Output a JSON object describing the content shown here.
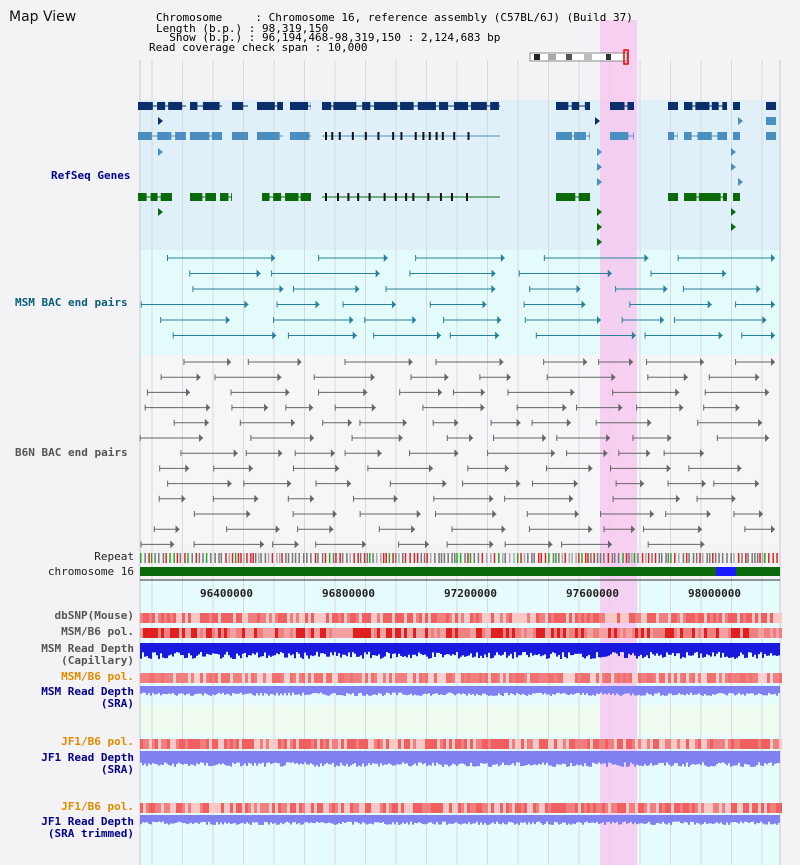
{
  "view_title": "Map View",
  "header": {
    "chromosome_line": "Chromosome     : Chromosome 16, reference assembly (C57BL/6J) (Build 37)",
    "length_line": "Length (b.p.) : 98,319,150",
    "show_line": "  Show (b.p.) : 96,194,468-98,319,150 : 2,124,683 bp",
    "coverage_line": "Read coverage check span : 10,000"
  },
  "tracks": {
    "refseq": "RefSeq Genes",
    "msm_bac": "MSM BAC end pairs",
    "b6n_bac": "B6N BAC end pairs",
    "repeat": "Repeat",
    "chromosome": "chromosome 16",
    "dbsnp": "dbSNP(Mouse)",
    "msm_pol": "MSM/B6 pol.",
    "msm_depth_cap_1": "MSM Read Depth",
    "msm_depth_cap_2": "(Capillary)",
    "msm_pol2": "MSM/B6 pol.",
    "msm_depth_sra_1": "MSM Read Depth",
    "msm_depth_sra_2": "(SRA)",
    "jf1_pol": "JF1/B6 pol.",
    "jf1_depth_sra_1": "JF1 Read Depth",
    "jf1_depth_sra_2": "(SRA)",
    "jf1_pol2": "JF1/B6 pol.",
    "jf1_depth_trim_1": "JF1 Read Depth",
    "jf1_depth_trim_2": "(SRA trimmed)"
  },
  "axis_ticks": [
    "96400000",
    "96800000",
    "97200000",
    "97600000",
    "98000000"
  ],
  "colors": {
    "refseq_bg": "#dff0f8",
    "msm_bg": "#e3fbfb",
    "highlight": "#f6c8f0",
    "gene_dark": "#0b2f6b",
    "gene_mid": "#4a8fbf",
    "gene_green": "#0a6a0a",
    "chromosome_bar": "#0a6a0a",
    "depth_blue": "#1a1adf",
    "depth_lavender": "#8080f0"
  }
}
